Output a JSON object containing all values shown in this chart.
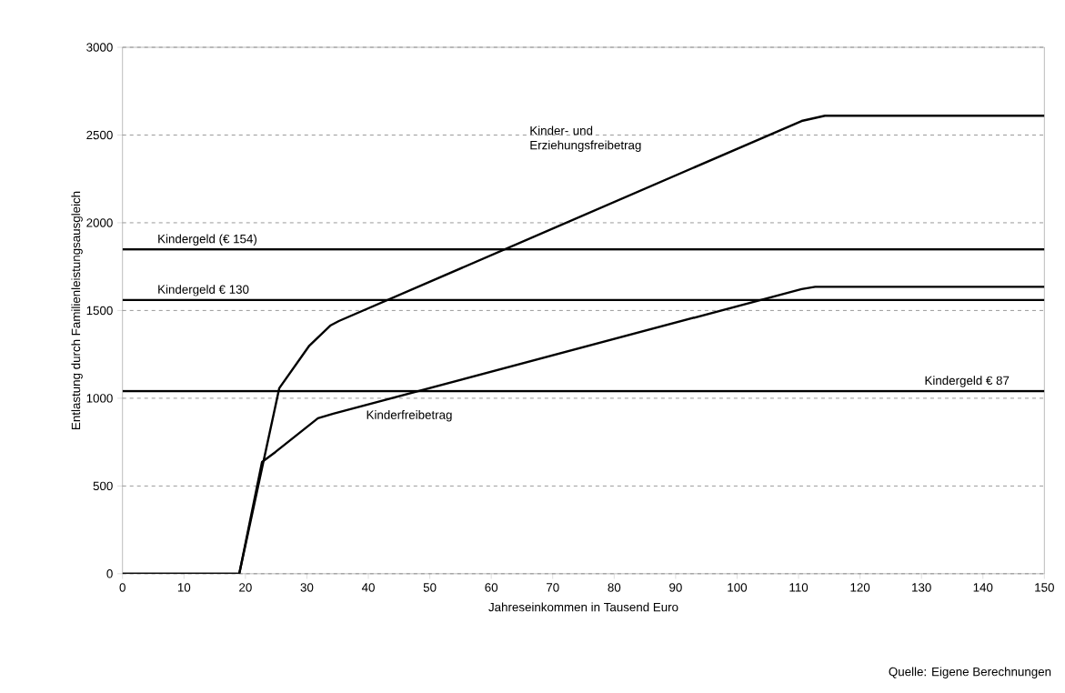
{
  "chart_data": {
    "type": "line",
    "xlabel": "Jahreseinkommen in Tausend Euro",
    "ylabel": "Entlastung durch Familienleistungsausgleich",
    "xlim": [
      0,
      150
    ],
    "ylim": [
      0,
      3000
    ],
    "xticks": [
      0,
      10,
      20,
      30,
      40,
      50,
      60,
      70,
      80,
      90,
      100,
      110,
      120,
      130,
      140,
      150
    ],
    "yticks": [
      0,
      500,
      1000,
      1500,
      2000,
      2500,
      3000
    ],
    "grid": "y",
    "marker": "none",
    "line_style": "solid",
    "series": [
      {
        "name": "Kinder- und Erziehungsfreibetrag",
        "color": "#000000",
        "x": [
          0,
          19,
          25.5,
          30.4,
          33.8,
          35.2,
          110.5,
          114.3,
          150
        ],
        "values": [
          0,
          0,
          1057,
          1300,
          1414,
          1440,
          2580,
          2610,
          2610
        ]
      },
      {
        "name": "Kinderfreibetrag",
        "color": "#000000",
        "x": [
          0,
          19,
          22.7,
          24.9,
          31.8,
          34.3,
          110.5,
          112.7,
          150
        ],
        "values": [
          0,
          0,
          637,
          694,
          886,
          912,
          1622,
          1635,
          1635
        ]
      }
    ],
    "ref_lines": [
      {
        "axis": "y",
        "value": 1848,
        "label": "Kindergeld (€ 154)",
        "color": "#000000"
      },
      {
        "axis": "y",
        "value": 1560,
        "label": "Kindergeld € 130",
        "color": "#000000"
      },
      {
        "axis": "y",
        "value": 1041,
        "label": "Kindergeld € 87",
        "color": "#000000"
      }
    ],
    "annotations": [
      "Quelle: Eigene Berechnungen"
    ]
  }
}
